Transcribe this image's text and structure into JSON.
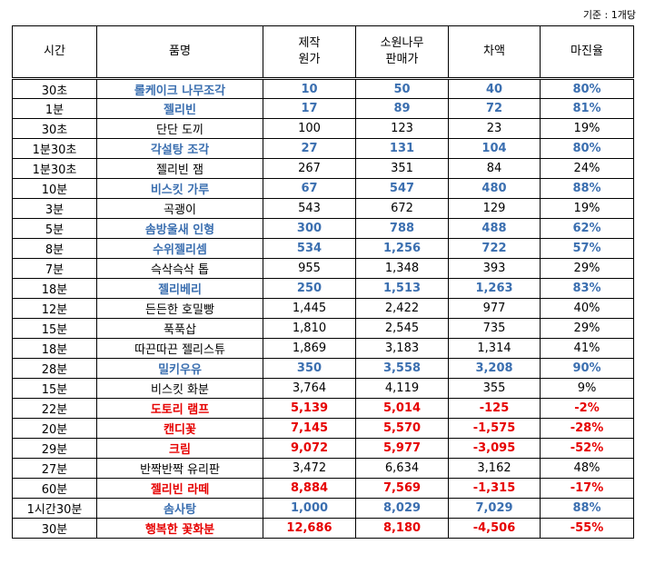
{
  "note": "기준 : 1개당",
  "headers": {
    "time": "시간",
    "name": "품명",
    "cost_1": "제작",
    "cost_2": "원가",
    "price_1": "소원나무",
    "price_2": "판매가",
    "diff": "차액",
    "margin": "마진율"
  },
  "rows": [
    {
      "time": "30초",
      "name": "롤케이크 나무조각",
      "cost": "10",
      "price": "50",
      "diff": "40",
      "margin": "80%",
      "style": "blue"
    },
    {
      "time": "1분",
      "name": "젤리빈",
      "cost": "17",
      "price": "89",
      "diff": "72",
      "margin": "81%",
      "style": "blue"
    },
    {
      "time": "30초",
      "name": "단단 도끼",
      "cost": "100",
      "price": "123",
      "diff": "23",
      "margin": "19%",
      "style": "black"
    },
    {
      "time": "1분30초",
      "name": "각설탕 조각",
      "cost": "27",
      "price": "131",
      "diff": "104",
      "margin": "80%",
      "style": "blue"
    },
    {
      "time": "1분30초",
      "name": "젤리빈 잼",
      "cost": "267",
      "price": "351",
      "diff": "84",
      "margin": "24%",
      "style": "black"
    },
    {
      "time": "10분",
      "name": "비스킷 가루",
      "cost": "67",
      "price": "547",
      "diff": "480",
      "margin": "88%",
      "style": "blue"
    },
    {
      "time": "3분",
      "name": "곡괭이",
      "cost": "543",
      "price": "672",
      "diff": "129",
      "margin": "19%",
      "style": "black"
    },
    {
      "time": "5분",
      "name": "솜방울새 인형",
      "cost": "300",
      "price": "788",
      "diff": "488",
      "margin": "62%",
      "style": "blue"
    },
    {
      "time": "8분",
      "name": "수위젤리셈",
      "cost": "534",
      "price": "1,256",
      "diff": "722",
      "margin": "57%",
      "style": "blue"
    },
    {
      "time": "7분",
      "name": "슥삭슥삭 톱",
      "cost": "955",
      "price": "1,348",
      "diff": "393",
      "margin": "29%",
      "style": "black"
    },
    {
      "time": "18분",
      "name": "젤리베리",
      "cost": "250",
      "price": "1,513",
      "diff": "1,263",
      "margin": "83%",
      "style": "blue"
    },
    {
      "time": "12분",
      "name": "든든한 호밀빵",
      "cost": "1,445",
      "price": "2,422",
      "diff": "977",
      "margin": "40%",
      "style": "black"
    },
    {
      "time": "15분",
      "name": "푹푹삽",
      "cost": "1,810",
      "price": "2,545",
      "diff": "735",
      "margin": "29%",
      "style": "black"
    },
    {
      "time": "18분",
      "name": "따끈따끈 젤리스튜",
      "cost": "1,869",
      "price": "3,183",
      "diff": "1,314",
      "margin": "41%",
      "style": "black"
    },
    {
      "time": "28분",
      "name": "밀키우유",
      "cost": "350",
      "price": "3,558",
      "diff": "3,208",
      "margin": "90%",
      "style": "blue"
    },
    {
      "time": "15분",
      "name": "비스킷 화분",
      "cost": "3,764",
      "price": "4,119",
      "diff": "355",
      "margin": "9%",
      "style": "black"
    },
    {
      "time": "22분",
      "name": "도토리 램프",
      "cost": "5,139",
      "price": "5,014",
      "diff": "-125",
      "margin": "-2%",
      "style": "red"
    },
    {
      "time": "20분",
      "name": "캔디꽃",
      "cost": "7,145",
      "price": "5,570",
      "diff": "-1,575",
      "margin": "-28%",
      "style": "red"
    },
    {
      "time": "29분",
      "name": "크림",
      "cost": "9,072",
      "price": "5,977",
      "diff": "-3,095",
      "margin": "-52%",
      "style": "red"
    },
    {
      "time": "27분",
      "name": "반짝반짝 유리판",
      "cost": "3,472",
      "price": "6,634",
      "diff": "3,162",
      "margin": "48%",
      "style": "black"
    },
    {
      "time": "60분",
      "name": "젤리빈 라떼",
      "cost": "8,884",
      "price": "7,569",
      "diff": "-1,315",
      "margin": "-17%",
      "style": "red"
    },
    {
      "time": "1시간30분",
      "name": "솜사탕",
      "cost": "1,000",
      "price": "8,029",
      "diff": "7,029",
      "margin": "88%",
      "style": "blue"
    },
    {
      "time": "30분",
      "name": "행복한 꽃화분",
      "cost": "12,686",
      "price": "8,180",
      "diff": "-4,506",
      "margin": "-55%",
      "style": "red"
    }
  ]
}
